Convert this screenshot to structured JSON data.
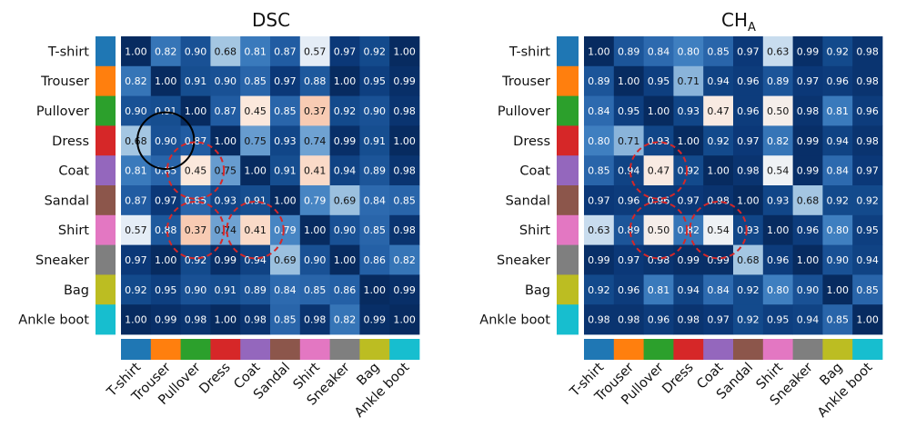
{
  "chart_data": [
    {
      "type": "heatmap",
      "title": "DSC",
      "title_main": "DSC",
      "title_sub": "",
      "categories": [
        "T-shirt",
        "Trouser",
        "Pullover",
        "Dress",
        "Coat",
        "Sandal",
        "Shirt",
        "Sneaker",
        "Bag",
        "Ankle boot"
      ],
      "category_colors": [
        "#1f77b4",
        "#ff7f0e",
        "#2ca02c",
        "#d62728",
        "#9467bd",
        "#8c564b",
        "#e377c2",
        "#7f7f7f",
        "#bcbd22",
        "#17becf"
      ],
      "value_range": [
        0.3,
        1.0
      ],
      "matrix": [
        [
          1.0,
          0.82,
          0.9,
          0.68,
          0.81,
          0.87,
          0.57,
          0.97,
          0.92,
          1.0
        ],
        [
          0.82,
          1.0,
          0.91,
          0.9,
          0.85,
          0.97,
          0.88,
          1.0,
          0.95,
          0.99
        ],
        [
          0.9,
          0.91,
          1.0,
          0.87,
          0.45,
          0.85,
          0.37,
          0.92,
          0.9,
          0.98
        ],
        [
          0.68,
          0.9,
          0.87,
          1.0,
          0.75,
          0.93,
          0.74,
          0.99,
          0.91,
          1.0
        ],
        [
          0.81,
          0.85,
          0.45,
          0.75,
          1.0,
          0.91,
          0.41,
          0.94,
          0.89,
          0.98
        ],
        [
          0.87,
          0.97,
          0.85,
          0.93,
          0.91,
          1.0,
          0.79,
          0.69,
          0.84,
          0.85
        ],
        [
          0.57,
          0.88,
          0.37,
          0.74,
          0.41,
          0.79,
          1.0,
          0.9,
          0.85,
          0.98
        ],
        [
          0.97,
          1.0,
          0.92,
          0.99,
          0.94,
          0.69,
          0.9,
          1.0,
          0.86,
          0.82
        ],
        [
          0.92,
          0.95,
          0.9,
          0.91,
          0.89,
          0.84,
          0.85,
          0.86,
          1.0,
          0.99
        ],
        [
          1.0,
          0.99,
          0.98,
          1.0,
          0.98,
          0.85,
          0.98,
          0.82,
          0.99,
          1.0
        ]
      ],
      "highlights": [
        {
          "row": 3,
          "col": 1,
          "style": "solid",
          "color": "#000000"
        },
        {
          "row": 4,
          "col": 2,
          "style": "dashed",
          "color": "#d62728"
        },
        {
          "row": 6,
          "col": 2,
          "style": "dashed",
          "color": "#d62728"
        },
        {
          "row": 6,
          "col": 4,
          "style": "dashed",
          "color": "#d62728"
        }
      ]
    },
    {
      "type": "heatmap",
      "title": "CH_A",
      "title_main": "CH",
      "title_sub": "A",
      "categories": [
        "T-shirt",
        "Trouser",
        "Pullover",
        "Dress",
        "Coat",
        "Sandal",
        "Shirt",
        "Sneaker",
        "Bag",
        "Ankle boot"
      ],
      "category_colors": [
        "#1f77b4",
        "#ff7f0e",
        "#2ca02c",
        "#d62728",
        "#9467bd",
        "#8c564b",
        "#e377c2",
        "#7f7f7f",
        "#bcbd22",
        "#17becf"
      ],
      "value_range": [
        0.3,
        1.0
      ],
      "matrix": [
        [
          1.0,
          0.89,
          0.84,
          0.8,
          0.85,
          0.97,
          0.63,
          0.99,
          0.92,
          0.98
        ],
        [
          0.89,
          1.0,
          0.95,
          0.71,
          0.94,
          0.96,
          0.89,
          0.97,
          0.96,
          0.98
        ],
        [
          0.84,
          0.95,
          1.0,
          0.93,
          0.47,
          0.96,
          0.5,
          0.98,
          0.81,
          0.96
        ],
        [
          0.8,
          0.71,
          0.93,
          1.0,
          0.92,
          0.97,
          0.82,
          0.99,
          0.94,
          0.98
        ],
        [
          0.85,
          0.94,
          0.47,
          0.92,
          1.0,
          0.98,
          0.54,
          0.99,
          0.84,
          0.97
        ],
        [
          0.97,
          0.96,
          0.96,
          0.97,
          0.98,
          1.0,
          0.93,
          0.68,
          0.92,
          0.92
        ],
        [
          0.63,
          0.89,
          0.5,
          0.82,
          0.54,
          0.93,
          1.0,
          0.96,
          0.8,
          0.95
        ],
        [
          0.99,
          0.97,
          0.98,
          0.99,
          0.99,
          0.68,
          0.96,
          1.0,
          0.9,
          0.94
        ],
        [
          0.92,
          0.96,
          0.81,
          0.94,
          0.84,
          0.92,
          0.8,
          0.9,
          1.0,
          0.85
        ],
        [
          0.98,
          0.98,
          0.96,
          0.98,
          0.97,
          0.92,
          0.95,
          0.94,
          0.85,
          1.0
        ]
      ],
      "highlights": [
        {
          "row": 4,
          "col": 2,
          "style": "dashed",
          "color": "#d62728"
        },
        {
          "row": 6,
          "col": 2,
          "style": "dashed",
          "color": "#d62728"
        },
        {
          "row": 6,
          "col": 4,
          "style": "dashed",
          "color": "#d62728"
        }
      ]
    }
  ]
}
